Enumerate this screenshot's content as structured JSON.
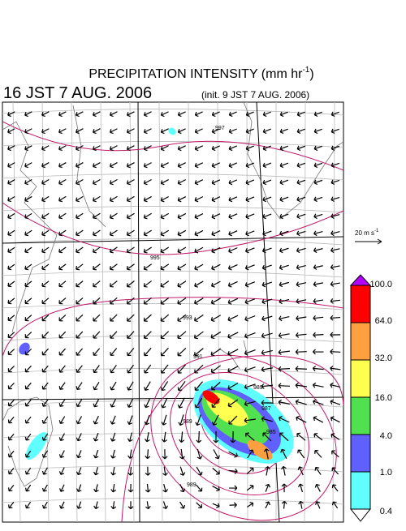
{
  "header": {
    "title": "PRECIPITATION INTENSITY (mm hr",
    "title_exponent": "-1",
    "title_end": ")",
    "valid_time": "16 JST 7 AUG. 2006",
    "init_time": "(init. 9 JST 7 AUG. 2006)"
  },
  "wind_reference": {
    "label": "20 m s",
    "exponent": "-1"
  },
  "colorbar": {
    "labels": [
      "100.0",
      "64.0",
      "32.0",
      "16.0",
      "4.0",
      "1.0",
      "0.4"
    ]
  },
  "isobar_labels": [
    "997",
    "995",
    "993",
    "991",
    "989",
    "987",
    "985",
    "989",
    "989"
  ]
}
